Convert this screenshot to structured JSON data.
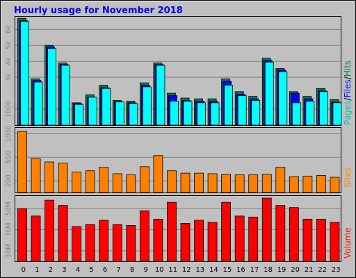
{
  "title": "Hourly usage for November 2018",
  "colors": {
    "title": "#0000ee",
    "background": "#c0c0c0",
    "pages": "#00ffff",
    "files": "#0000ff",
    "hits": "#008040",
    "sites": "#ff8000",
    "volume": "#ff0000"
  },
  "right_labels": {
    "pages": "Pages",
    "files": "Files",
    "hits": "Hits",
    "sites": "Sites",
    "volume": "Volume",
    "sep": "/"
  },
  "chart_data": [
    {
      "type": "bar",
      "title": "Hourly usage for November 2018",
      "categories": [
        "0",
        "1",
        "2",
        "3",
        "4",
        "5",
        "6",
        "7",
        "8",
        "9",
        "10",
        "11",
        "12",
        "13",
        "14",
        "15",
        "16",
        "17",
        "18",
        "19",
        "20",
        "21",
        "22",
        "23"
      ],
      "yticks": [
        {
          "value": 1000,
          "label": "1000"
        },
        {
          "value": 3000,
          "label": "3k"
        },
        {
          "value": 4000,
          "label": "4k"
        },
        {
          "value": 5000,
          "label": "5k"
        },
        {
          "value": 6000,
          "label": "6k"
        }
      ],
      "ylim": [
        0,
        6800
      ],
      "grid": true,
      "series": [
        {
          "name": "Hits",
          "values": [
            6700,
            2900,
            5000,
            3900,
            1400,
            1900,
            2500,
            1550,
            1500,
            2650,
            3900,
            2000,
            1700,
            1650,
            1650,
            2900,
            2100,
            1800,
            4200,
            3550,
            2100,
            1800,
            2300,
            1600
          ]
        },
        {
          "name": "Files",
          "values": [
            6550,
            2800,
            4900,
            3800,
            1350,
            1750,
            2350,
            1450,
            1400,
            2500,
            3800,
            1850,
            1550,
            1500,
            1500,
            2750,
            1950,
            1650,
            4050,
            3450,
            2000,
            1650,
            2150,
            1450
          ]
        },
        {
          "name": "Pages",
          "values": [
            6500,
            2700,
            4800,
            3750,
            1300,
            1750,
            2300,
            1450,
            1350,
            2400,
            3750,
            1500,
            1500,
            1400,
            1400,
            2500,
            1850,
            1550,
            3950,
            3350,
            1400,
            1500,
            2100,
            1400
          ]
        }
      ]
    },
    {
      "type": "bar",
      "categories": [
        "0",
        "1",
        "2",
        "3",
        "4",
        "5",
        "6",
        "7",
        "8",
        "9",
        "10",
        "11",
        "12",
        "13",
        "14",
        "15",
        "16",
        "17",
        "18",
        "19",
        "20",
        "21",
        "22",
        "23"
      ],
      "yticks": [
        {
          "value": 200,
          "label": "200"
        },
        {
          "value": 600,
          "label": "600"
        },
        {
          "value": 1000,
          "label": "1000"
        }
      ],
      "ylim": [
        0,
        1100
      ],
      "grid": true,
      "series": [
        {
          "name": "Sites",
          "values": [
            1040,
            580,
            520,
            500,
            350,
            370,
            430,
            320,
            300,
            440,
            630,
            370,
            330,
            330,
            320,
            310,
            300,
            300,
            310,
            430,
            270,
            280,
            290,
            260
          ]
        }
      ]
    },
    {
      "type": "bar",
      "categories": [
        "0",
        "1",
        "2",
        "3",
        "4",
        "5",
        "6",
        "7",
        "8",
        "9",
        "10",
        "11",
        "12",
        "13",
        "14",
        "15",
        "16",
        "17",
        "18",
        "19",
        "20",
        "21",
        "22",
        "23"
      ],
      "yticks": [
        {
          "value": 10,
          "label": "10M"
        },
        {
          "value": 30,
          "label": "30M"
        },
        {
          "value": 50,
          "label": "50M"
        }
      ],
      "ylim": [
        0,
        62
      ],
      "grid": true,
      "series": [
        {
          "name": "Volume",
          "values": [
            50,
            43,
            58,
            53,
            33,
            35,
            39,
            35,
            34,
            48,
            40,
            56,
            36,
            39,
            37,
            56,
            43,
            42,
            60,
            53,
            51,
            40,
            40,
            37
          ]
        }
      ]
    }
  ]
}
